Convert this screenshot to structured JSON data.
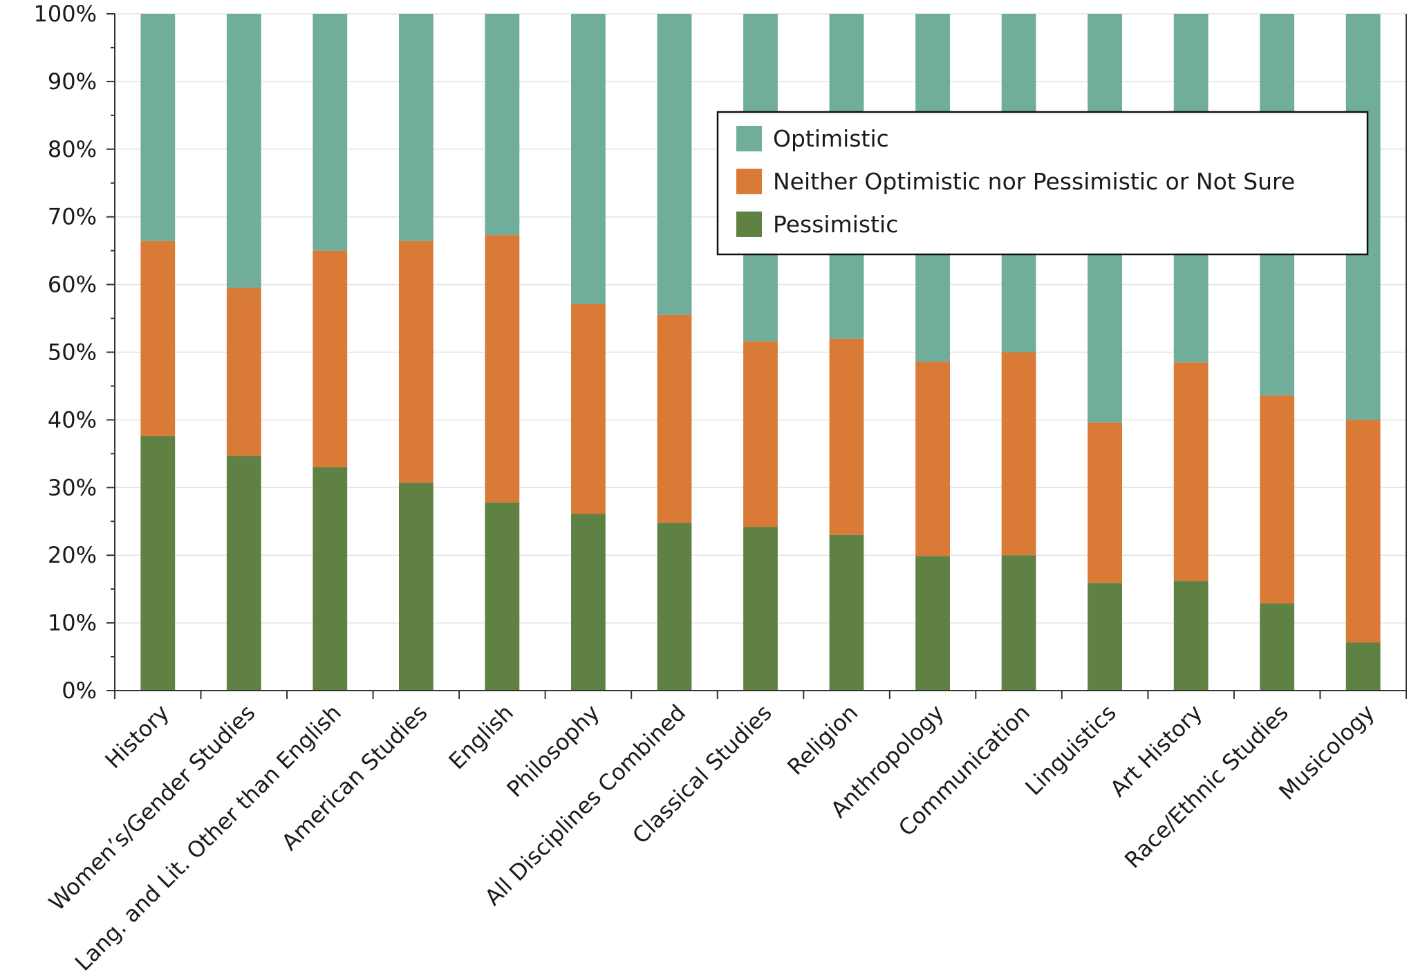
{
  "chart_data": {
    "type": "bar",
    "stacked": true,
    "categories": [
      "History",
      "Women’s/Gender Studies",
      "Lang. and Lit. Other than English",
      "American Studies",
      "English",
      "Philosophy",
      "All Disciplines Combined",
      "Classical Studies",
      "Religion",
      "Anthropology",
      "Communication",
      "Linguistics",
      "Art History",
      "Race/Ethnic Studies",
      "Musicology"
    ],
    "series": [
      {
        "name": "Pessimistic",
        "color": "#5f8244",
        "values": [
          37.6,
          34.7,
          33.0,
          30.7,
          27.8,
          26.1,
          24.8,
          24.2,
          23.0,
          19.9,
          20.0,
          15.9,
          16.2,
          12.9,
          7.1
        ]
      },
      {
        "name": "Neither Optimistic nor Pessimistic or Not Sure",
        "color": "#d97a37",
        "values": [
          28.8,
          24.8,
          32.0,
          35.7,
          39.5,
          31.0,
          30.7,
          27.4,
          29.0,
          28.7,
          30.0,
          23.7,
          32.3,
          30.7,
          32.9
        ]
      },
      {
        "name": "Optimistic",
        "color": "#70ad9a",
        "values": [
          33.6,
          40.5,
          35.0,
          33.6,
          32.7,
          42.9,
          44.5,
          48.4,
          48.0,
          51.4,
          50.0,
          60.4,
          51.5,
          56.4,
          60.0
        ]
      }
    ],
    "y_ticks": [
      "0%",
      "10%",
      "20%",
      "30%",
      "40%",
      "50%",
      "60%",
      "70%",
      "80%",
      "90%",
      "100%"
    ],
    "ylim": [
      0,
      100
    ],
    "grid": true,
    "legend_position": "top-right",
    "legend_order": [
      "Optimistic",
      "Neither Optimistic nor Pessimistic or Not Sure",
      "Pessimistic"
    ],
    "title": "",
    "xlabel": "",
    "ylabel": ""
  }
}
